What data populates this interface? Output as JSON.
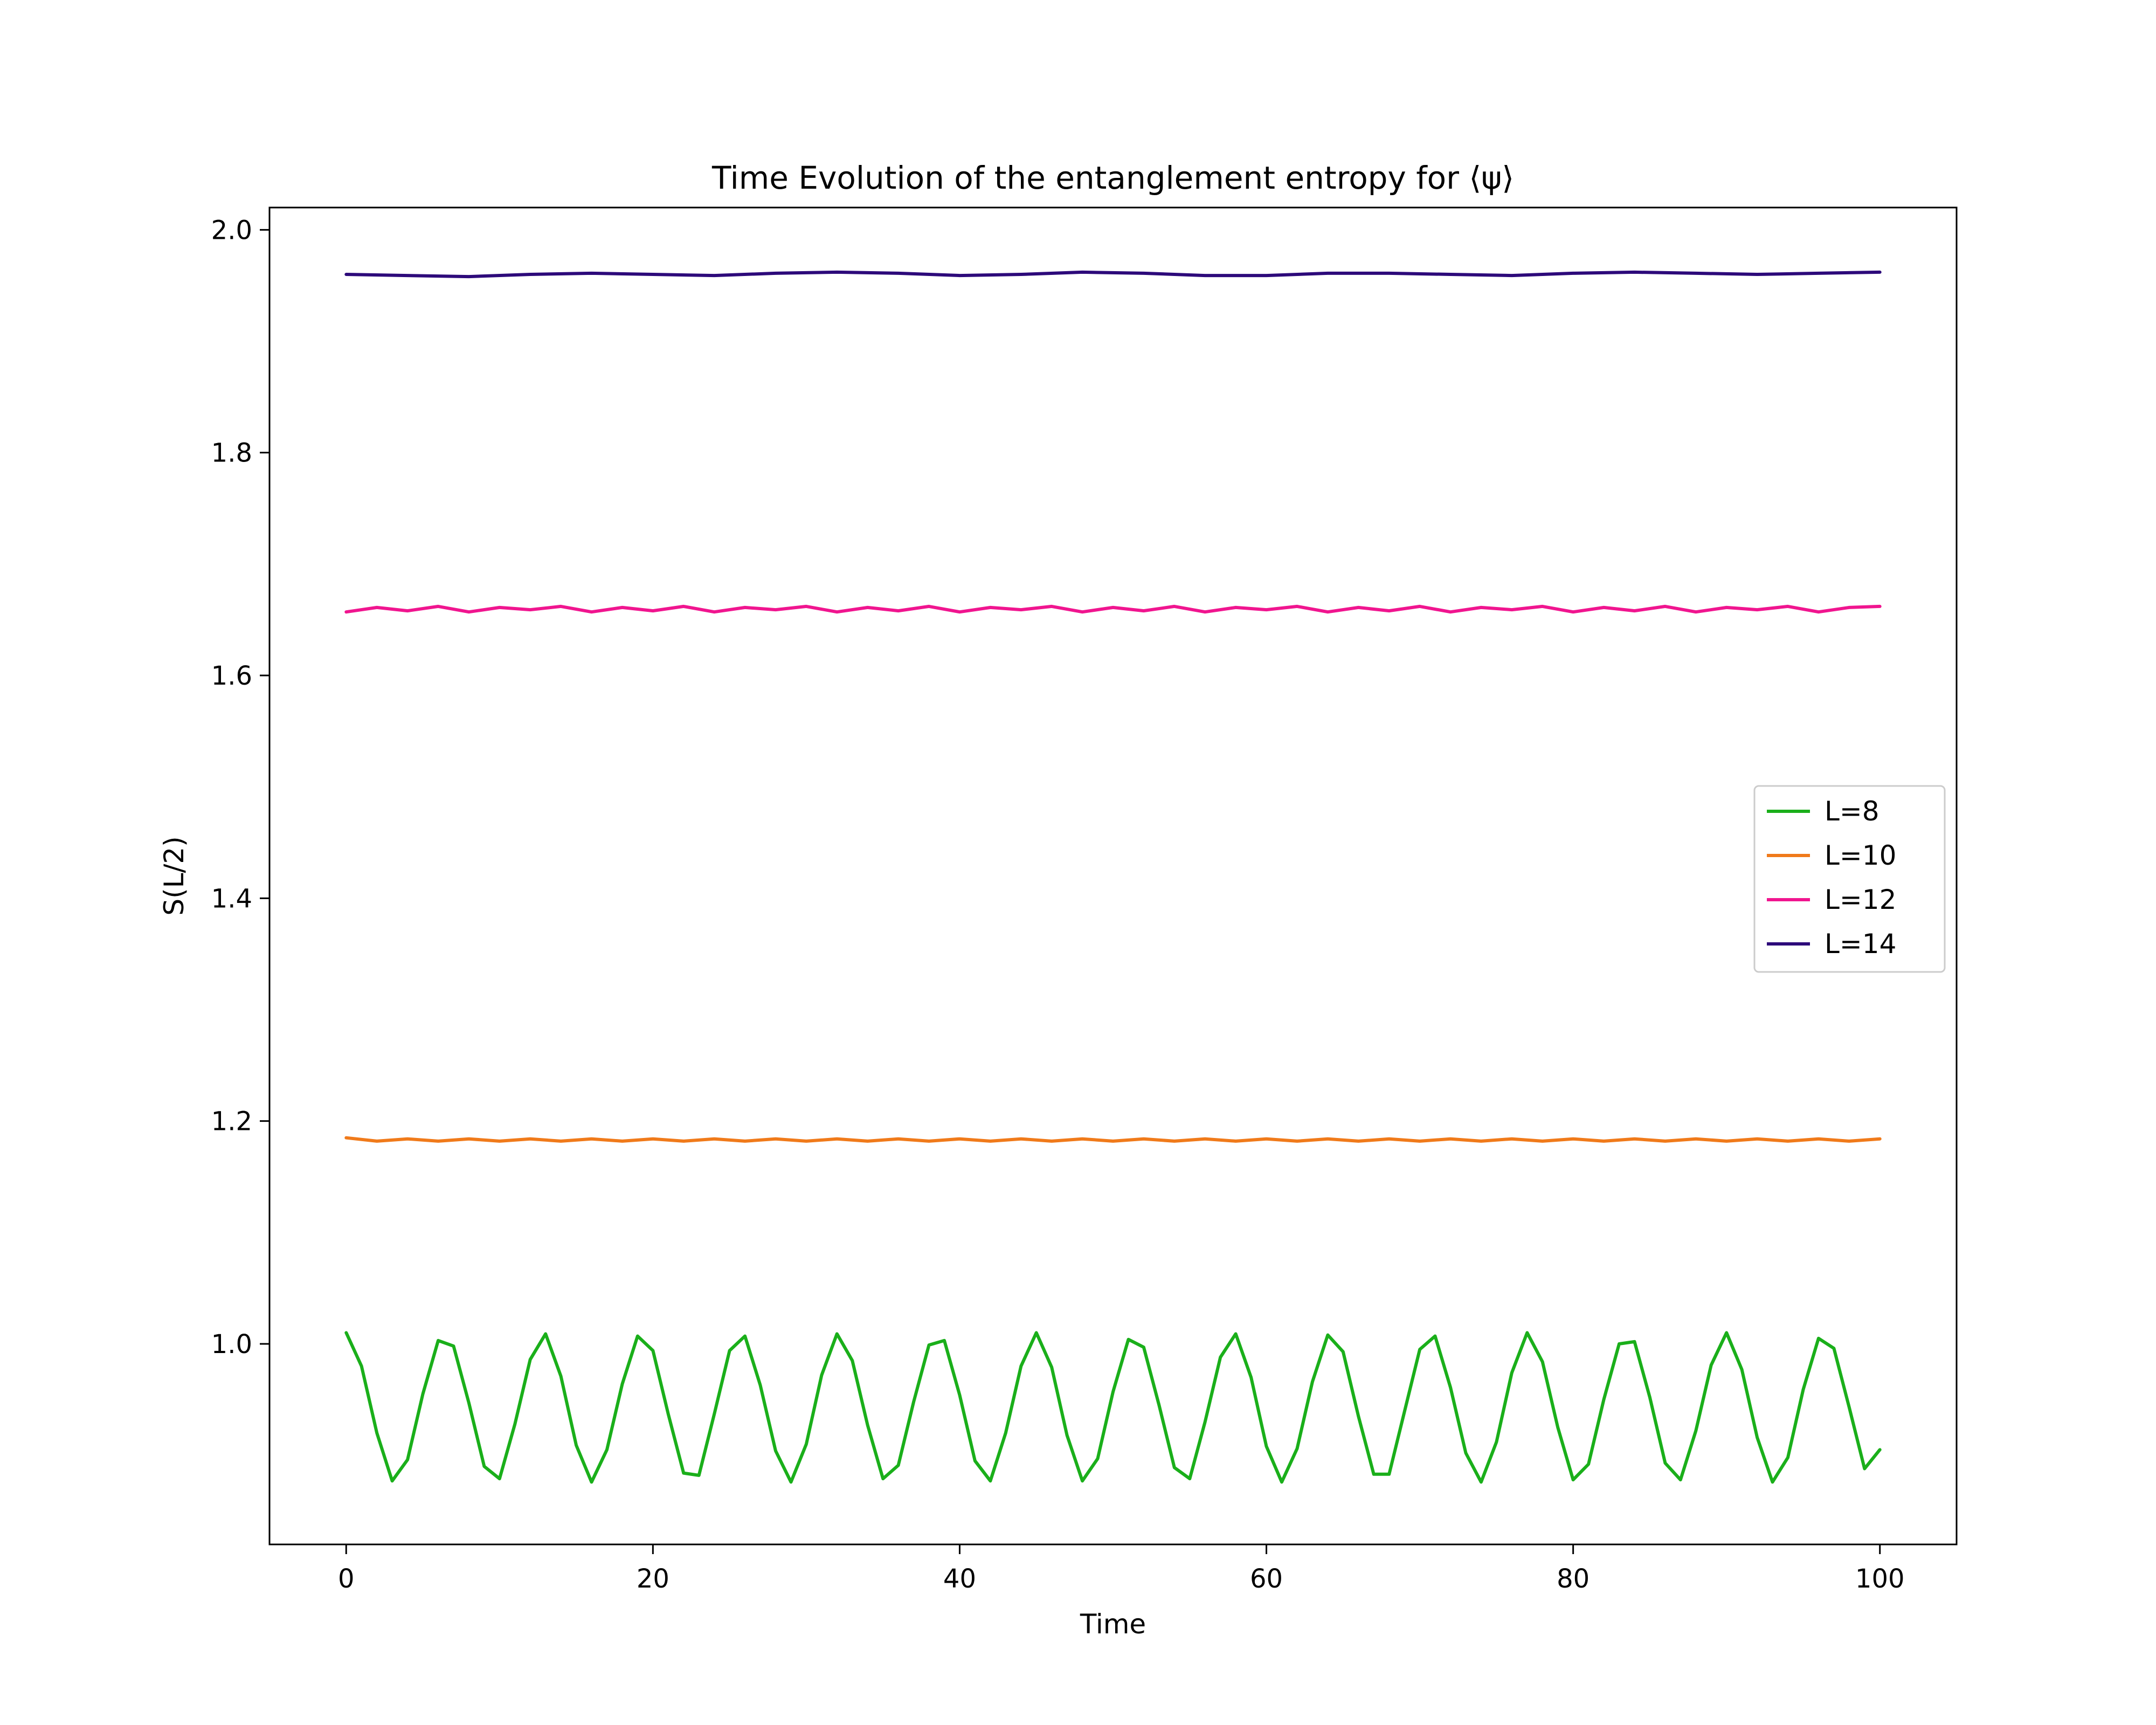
{
  "chart_data": {
    "type": "line",
    "title": "Time Evolution of the entanglement entropy for ⟨ψ⟩",
    "xlabel": "Time",
    "ylabel": "S(L/2)",
    "xlim": [
      -5,
      105
    ],
    "ylim": [
      0.82,
      2.02
    ],
    "xticks": [
      0,
      20,
      40,
      60,
      80,
      100
    ],
    "yticks": [
      1.0,
      1.2,
      1.4,
      1.6,
      1.8,
      2.0
    ],
    "xtick_labels": [
      "0",
      "20",
      "40",
      "60",
      "80",
      "100"
    ],
    "ytick_labels": [
      "1.0",
      "1.2",
      "1.4",
      "1.6",
      "1.8",
      "2.0"
    ],
    "grid": false,
    "legend_position": "center-right",
    "series": [
      {
        "name": "L=8",
        "color": "#1aaf1a",
        "x": [
          0,
          1,
          2,
          3,
          4,
          5,
          6,
          7,
          8,
          9,
          10,
          11,
          12,
          13,
          14,
          15,
          16,
          17,
          18,
          19,
          20,
          21,
          22,
          23,
          24,
          25,
          26,
          27,
          28,
          29,
          30,
          31,
          32,
          33,
          34,
          35,
          36,
          37,
          38,
          39,
          40,
          41,
          42,
          43,
          44,
          45,
          46,
          47,
          48,
          49,
          50,
          51,
          52,
          53,
          54,
          55,
          56,
          57,
          58,
          59,
          60,
          61,
          62,
          63,
          64,
          65,
          66,
          67,
          68,
          69,
          70,
          71,
          72,
          73,
          74,
          75,
          76,
          77,
          78,
          79,
          80,
          81,
          82,
          83,
          84,
          85,
          86,
          87,
          88,
          89,
          90,
          91,
          92,
          93,
          94,
          95,
          96,
          97,
          98,
          99,
          100
        ],
        "y": [
          1.01,
          0.98,
          0.92,
          0.877,
          0.896,
          0.955,
          1.003,
          0.998,
          0.947,
          0.89,
          0.879,
          0.928,
          0.986,
          1.009,
          0.971,
          0.909,
          0.876,
          0.905,
          0.964,
          1.007,
          0.994,
          0.937,
          0.884,
          0.882,
          0.937,
          0.994,
          1.007,
          0.963,
          0.904,
          0.876,
          0.91,
          0.972,
          1.009,
          0.985,
          0.927,
          0.879,
          0.891,
          0.948,
          0.999,
          1.003,
          0.954,
          0.895,
          0.877,
          0.92,
          0.98,
          1.01,
          0.979,
          0.918,
          0.877,
          0.897,
          0.957,
          1.004,
          0.997,
          0.945,
          0.889,
          0.879,
          0.93,
          0.988,
          1.009,
          0.97,
          0.908,
          0.876,
          0.906,
          0.966,
          1.008,
          0.993,
          0.935,
          0.883,
          0.883,
          0.939,
          0.995,
          1.007,
          0.961,
          0.902,
          0.876,
          0.912,
          0.974,
          1.01,
          0.984,
          0.925,
          0.878,
          0.892,
          0.95,
          1.0,
          1.002,
          0.952,
          0.893,
          0.878,
          0.922,
          0.981,
          1.01,
          0.977,
          0.916,
          0.876,
          0.898,
          0.959,
          1.005,
          0.996,
          0.943,
          0.888,
          0.905
        ]
      },
      {
        "name": "L=10",
        "color": "#f07a1a",
        "x": [
          0,
          2,
          4,
          6,
          8,
          10,
          12,
          14,
          16,
          18,
          20,
          22,
          24,
          26,
          28,
          30,
          32,
          34,
          36,
          38,
          40,
          42,
          44,
          46,
          48,
          50,
          52,
          54,
          56,
          58,
          60,
          62,
          64,
          66,
          68,
          70,
          72,
          74,
          76,
          78,
          80,
          82,
          84,
          86,
          88,
          90,
          92,
          94,
          96,
          98,
          100
        ],
        "y": [
          1.185,
          1.182,
          1.184,
          1.182,
          1.184,
          1.182,
          1.184,
          1.182,
          1.184,
          1.182,
          1.184,
          1.182,
          1.184,
          1.182,
          1.184,
          1.182,
          1.184,
          1.182,
          1.184,
          1.182,
          1.184,
          1.182,
          1.184,
          1.182,
          1.184,
          1.182,
          1.184,
          1.182,
          1.184,
          1.182,
          1.184,
          1.182,
          1.184,
          1.182,
          1.184,
          1.182,
          1.184,
          1.182,
          1.184,
          1.182,
          1.184,
          1.182,
          1.184,
          1.182,
          1.184,
          1.182,
          1.184,
          1.182,
          1.184,
          1.182,
          1.184
        ]
      },
      {
        "name": "L=12",
        "color": "#f0158f",
        "x": [
          0,
          2,
          4,
          6,
          8,
          10,
          12,
          14,
          16,
          18,
          20,
          22,
          24,
          26,
          28,
          30,
          32,
          34,
          36,
          38,
          40,
          42,
          44,
          46,
          48,
          50,
          52,
          54,
          56,
          58,
          60,
          62,
          64,
          66,
          68,
          70,
          72,
          74,
          76,
          78,
          80,
          82,
          84,
          86,
          88,
          90,
          92,
          94,
          96,
          98,
          100
        ],
        "y": [
          1.657,
          1.661,
          1.658,
          1.662,
          1.657,
          1.661,
          1.659,
          1.662,
          1.657,
          1.661,
          1.658,
          1.662,
          1.657,
          1.661,
          1.659,
          1.662,
          1.657,
          1.661,
          1.658,
          1.662,
          1.657,
          1.661,
          1.659,
          1.662,
          1.657,
          1.661,
          1.658,
          1.662,
          1.657,
          1.661,
          1.659,
          1.662,
          1.657,
          1.661,
          1.658,
          1.662,
          1.657,
          1.661,
          1.659,
          1.662,
          1.657,
          1.661,
          1.658,
          1.662,
          1.657,
          1.661,
          1.659,
          1.662,
          1.657,
          1.661,
          1.662
        ]
      },
      {
        "name": "L=14",
        "color": "#2d0a7a",
        "x": [
          0,
          4,
          8,
          12,
          16,
          20,
          24,
          28,
          32,
          36,
          40,
          44,
          48,
          52,
          56,
          60,
          64,
          68,
          72,
          76,
          80,
          84,
          88,
          92,
          96,
          100
        ],
        "y": [
          1.96,
          1.959,
          1.958,
          1.96,
          1.961,
          1.96,
          1.959,
          1.961,
          1.962,
          1.961,
          1.959,
          1.96,
          1.962,
          1.961,
          1.959,
          1.959,
          1.961,
          1.961,
          1.96,
          1.959,
          1.961,
          1.962,
          1.961,
          1.96,
          1.961,
          1.962
        ]
      }
    ]
  }
}
